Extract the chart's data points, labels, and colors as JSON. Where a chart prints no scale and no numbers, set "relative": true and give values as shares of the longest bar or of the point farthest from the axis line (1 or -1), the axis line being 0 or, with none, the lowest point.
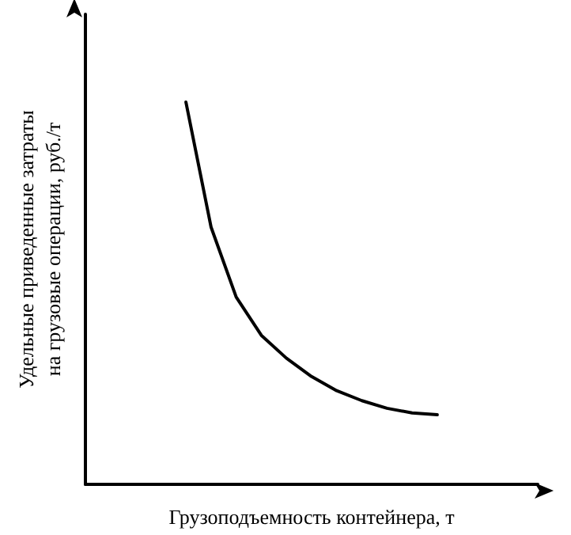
{
  "chart_data": {
    "type": "line",
    "relative": true,
    "xlabel": "Грузоподъемность контейнера, т",
    "ylabel": "Удельные приведенные затраты\nна грузовые операции, руб./т",
    "categories": [
      null,
      null,
      null,
      null,
      null,
      null,
      null,
      null,
      null,
      null,
      null,
      null,
      null,
      null,
      null,
      null,
      null,
      null,
      null
    ],
    "series": [
      {
        "color": "#000000",
        "values": [
          null,
          null,
          null,
          null,
          1.0,
          0.673,
          0.49,
          0.39,
          0.33,
          0.282,
          0.245,
          0.219,
          0.199,
          0.187,
          0.182,
          null,
          null,
          null,
          null
        ]
      }
    ],
    "marker": "none",
    "line_style": "solid"
  }
}
